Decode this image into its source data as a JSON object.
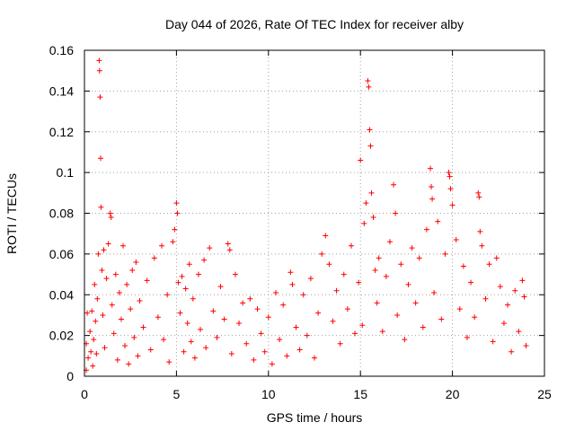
{
  "chart_data": {
    "type": "scatter",
    "title": "Day 044 of 2026, Rate Of TEC Index for receiver alby",
    "xlabel": "GPS time / hours",
    "ylabel": "ROTI / TECUs",
    "xlim": [
      0,
      25
    ],
    "ylim": [
      0,
      0.16
    ],
    "xticks": [
      0,
      5,
      10,
      15,
      20,
      25
    ],
    "yticks": [
      0,
      0.02,
      0.04,
      0.06,
      0.08,
      0.1,
      0.12,
      0.14,
      0.16
    ],
    "xtick_labels": [
      "0",
      "5",
      "10",
      "15",
      "20",
      "25"
    ],
    "ytick_labels": [
      "0",
      "0.02",
      "0.04",
      "0.06",
      "0.08",
      "0.1",
      "0.12",
      "0.14",
      "0.16"
    ],
    "grid": true,
    "marker": "plus",
    "series": [
      {
        "name": "ROTI",
        "color": "#ff0000",
        "points": [
          [
            0.1,
            0.003
          ],
          [
            0.1,
            0.016
          ],
          [
            0.15,
            0.031
          ],
          [
            0.2,
            0.009
          ],
          [
            0.3,
            0.022
          ],
          [
            0.35,
            0.012
          ],
          [
            0.4,
            0.032
          ],
          [
            0.45,
            0.005
          ],
          [
            0.5,
            0.018
          ],
          [
            0.55,
            0.045
          ],
          [
            0.6,
            0.027
          ],
          [
            0.65,
            0.011
          ],
          [
            0.7,
            0.038
          ],
          [
            0.75,
            0.06
          ],
          [
            0.8,
            0.155
          ],
          [
            0.82,
            0.15
          ],
          [
            0.85,
            0.137
          ],
          [
            0.88,
            0.107
          ],
          [
            0.9,
            0.083
          ],
          [
            0.95,
            0.052
          ],
          [
            1.0,
            0.03
          ],
          [
            1.05,
            0.062
          ],
          [
            1.1,
            0.014
          ],
          [
            1.2,
            0.048
          ],
          [
            1.3,
            0.065
          ],
          [
            1.4,
            0.08
          ],
          [
            1.45,
            0.078
          ],
          [
            1.5,
            0.035
          ],
          [
            1.6,
            0.021
          ],
          [
            1.7,
            0.05
          ],
          [
            1.8,
            0.008
          ],
          [
            1.9,
            0.041
          ],
          [
            2.0,
            0.028
          ],
          [
            2.1,
            0.064
          ],
          [
            2.2,
            0.015
          ],
          [
            2.3,
            0.045
          ],
          [
            2.4,
            0.006
          ],
          [
            2.5,
            0.033
          ],
          [
            2.6,
            0.052
          ],
          [
            2.7,
            0.019
          ],
          [
            2.8,
            0.056
          ],
          [
            2.9,
            0.01
          ],
          [
            3.0,
            0.037
          ],
          [
            3.2,
            0.024
          ],
          [
            3.4,
            0.047
          ],
          [
            3.6,
            0.013
          ],
          [
            3.8,
            0.058
          ],
          [
            4.0,
            0.029
          ],
          [
            4.2,
            0.064
          ],
          [
            4.3,
            0.018
          ],
          [
            4.5,
            0.04
          ],
          [
            4.6,
            0.007
          ],
          [
            4.8,
            0.066
          ],
          [
            4.9,
            0.072
          ],
          [
            5.0,
            0.085
          ],
          [
            5.05,
            0.08
          ],
          [
            5.1,
            0.046
          ],
          [
            5.2,
            0.031
          ],
          [
            5.3,
            0.049
          ],
          [
            5.4,
            0.012
          ],
          [
            5.5,
            0.043
          ],
          [
            5.6,
            0.026
          ],
          [
            5.7,
            0.055
          ],
          [
            5.8,
            0.017
          ],
          [
            5.9,
            0.038
          ],
          [
            6.0,
            0.009
          ],
          [
            6.2,
            0.05
          ],
          [
            6.3,
            0.023
          ],
          [
            6.5,
            0.057
          ],
          [
            6.6,
            0.014
          ],
          [
            6.8,
            0.063
          ],
          [
            7.0,
            0.032
          ],
          [
            7.2,
            0.019
          ],
          [
            7.4,
            0.044
          ],
          [
            7.6,
            0.028
          ],
          [
            7.8,
            0.065
          ],
          [
            7.9,
            0.062
          ],
          [
            8.0,
            0.011
          ],
          [
            8.2,
            0.05
          ],
          [
            8.4,
            0.026
          ],
          [
            8.6,
            0.036
          ],
          [
            8.8,
            0.016
          ],
          [
            9.0,
            0.038
          ],
          [
            9.2,
            0.008
          ],
          [
            9.4,
            0.033
          ],
          [
            9.6,
            0.021
          ],
          [
            9.8,
            0.012
          ],
          [
            10.0,
            0.029
          ],
          [
            10.2,
            0.006
          ],
          [
            10.4,
            0.041
          ],
          [
            10.6,
            0.018
          ],
          [
            10.8,
            0.035
          ],
          [
            11.0,
            0.01
          ],
          [
            11.2,
            0.051
          ],
          [
            11.3,
            0.045
          ],
          [
            11.5,
            0.024
          ],
          [
            11.7,
            0.013
          ],
          [
            11.9,
            0.04
          ],
          [
            12.1,
            0.02
          ],
          [
            12.3,
            0.048
          ],
          [
            12.5,
            0.009
          ],
          [
            12.7,
            0.031
          ],
          [
            12.9,
            0.06
          ],
          [
            13.1,
            0.069
          ],
          [
            13.3,
            0.055
          ],
          [
            13.5,
            0.027
          ],
          [
            13.7,
            0.042
          ],
          [
            13.9,
            0.016
          ],
          [
            14.1,
            0.05
          ],
          [
            14.3,
            0.033
          ],
          [
            14.5,
            0.064
          ],
          [
            14.7,
            0.021
          ],
          [
            14.9,
            0.046
          ],
          [
            15.0,
            0.106
          ],
          [
            15.1,
            0.025
          ],
          [
            15.2,
            0.075
          ],
          [
            15.3,
            0.085
          ],
          [
            15.4,
            0.145
          ],
          [
            15.45,
            0.142
          ],
          [
            15.5,
            0.121
          ],
          [
            15.55,
            0.113
          ],
          [
            15.6,
            0.09
          ],
          [
            15.7,
            0.078
          ],
          [
            15.8,
            0.052
          ],
          [
            15.9,
            0.036
          ],
          [
            16.0,
            0.058
          ],
          [
            16.2,
            0.022
          ],
          [
            16.4,
            0.049
          ],
          [
            16.6,
            0.066
          ],
          [
            16.8,
            0.094
          ],
          [
            16.9,
            0.08
          ],
          [
            17.0,
            0.03
          ],
          [
            17.2,
            0.055
          ],
          [
            17.4,
            0.018
          ],
          [
            17.6,
            0.045
          ],
          [
            17.8,
            0.063
          ],
          [
            18.0,
            0.036
          ],
          [
            18.2,
            0.058
          ],
          [
            18.4,
            0.024
          ],
          [
            18.6,
            0.072
          ],
          [
            18.8,
            0.102
          ],
          [
            18.85,
            0.093
          ],
          [
            18.9,
            0.087
          ],
          [
            19.0,
            0.041
          ],
          [
            19.2,
            0.076
          ],
          [
            19.4,
            0.028
          ],
          [
            19.6,
            0.06
          ],
          [
            19.8,
            0.1
          ],
          [
            19.85,
            0.098
          ],
          [
            19.9,
            0.092
          ],
          [
            20.0,
            0.084
          ],
          [
            20.2,
            0.067
          ],
          [
            20.4,
            0.033
          ],
          [
            20.6,
            0.054
          ],
          [
            20.8,
            0.019
          ],
          [
            21.0,
            0.046
          ],
          [
            21.2,
            0.029
          ],
          [
            21.4,
            0.09
          ],
          [
            21.45,
            0.088
          ],
          [
            21.5,
            0.071
          ],
          [
            21.6,
            0.064
          ],
          [
            21.8,
            0.038
          ],
          [
            22.0,
            0.055
          ],
          [
            22.2,
            0.017
          ],
          [
            22.4,
            0.058
          ],
          [
            22.6,
            0.044
          ],
          [
            22.8,
            0.026
          ],
          [
            23.0,
            0.035
          ],
          [
            23.2,
            0.012
          ],
          [
            23.4,
            0.042
          ],
          [
            23.6,
            0.022
          ],
          [
            23.8,
            0.047
          ],
          [
            23.9,
            0.039
          ],
          [
            24.0,
            0.015
          ]
        ]
      }
    ]
  }
}
